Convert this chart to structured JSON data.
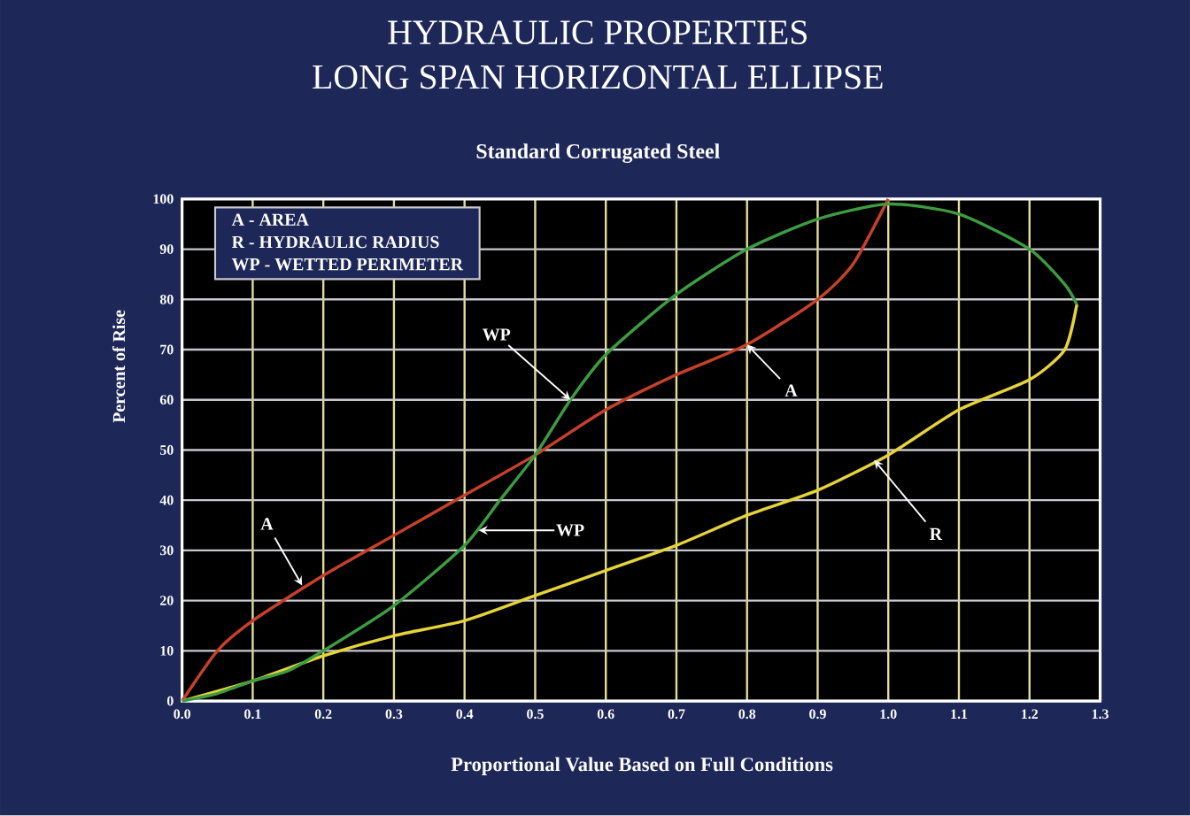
{
  "chart_data": {
    "type": "line",
    "title": "HYDRAULIC PROPERTIES\nLONG SPAN HORIZONTAL ELLIPSE",
    "subtitle": "Standard Corrugated Steel",
    "xlabel": "Proportional Value Based on Full Conditions",
    "ylabel": "Percent of Rise",
    "series": [
      {
        "color": "#c8402a",
        "x": [
          0,
          0.05,
          0.1,
          0.2,
          0.3,
          0.4,
          0.5,
          0.6,
          0.7,
          0.8,
          0.9,
          0.95,
          1.0
        ],
        "values": [
          0,
          10,
          16,
          25,
          33,
          41,
          49,
          58,
          65,
          71,
          80,
          87,
          100
        ]
      },
      {
        "color": "#e6d23a",
        "x": [
          0,
          0.1,
          0.2,
          0.3,
          0.4,
          0.5,
          0.6,
          0.7,
          0.8,
          0.9,
          1.0,
          1.1,
          1.2,
          1.25,
          1.267
        ],
        "values": [
          0,
          4,
          9,
          13,
          16,
          21,
          26,
          31,
          37,
          42,
          49,
          58,
          64,
          70,
          79
        ]
      },
      {
        "color": "#3c9c40",
        "x": [
          0,
          0.05,
          0.1,
          0.15,
          0.2,
          0.3,
          0.4,
          0.45,
          0.5,
          0.55,
          0.6,
          0.7,
          0.8,
          0.9,
          1.0,
          1.1,
          1.2,
          1.25,
          1.267
        ],
        "values": [
          0,
          1.5,
          4,
          6,
          10,
          19,
          31,
          40,
          49,
          60,
          69,
          81,
          90,
          96,
          99,
          97,
          90,
          83,
          79
        ]
      }
    ],
    "xlim": [
      0,
      1.3
    ],
    "ylim": [
      0,
      100
    ],
    "xticks": [
      {
        "value": 0,
        "label": "0.0"
      },
      0.1,
      0.2,
      0.3,
      0.4,
      0.5,
      0.6,
      0.7,
      0.8,
      0.9,
      {
        "value": 1,
        "label": "1.0"
      },
      1.1,
      1.2,
      1.3
    ],
    "yticks": [
      0,
      10,
      20,
      30,
      40,
      50,
      60,
      70,
      80,
      90,
      100
    ],
    "grid": true,
    "marker": "none",
    "line_style": "solid",
    "annotations": [
      "A -  AREA",
      "R -  HYDRAULIC RADIUS",
      "WP -  WETTED PERIMETER",
      {
        "text": "A",
        "x": 0.17,
        "y": 23
      },
      {
        "text": "WP",
        "x": 0.55,
        "y": 60
      },
      {
        "text": "WP",
        "x": 0.42,
        "y": 34
      },
      {
        "text": "A",
        "x": 0.8,
        "y": 71
      },
      {
        "text": "R",
        "x": 0.98,
        "y": 48
      }
    ]
  }
}
